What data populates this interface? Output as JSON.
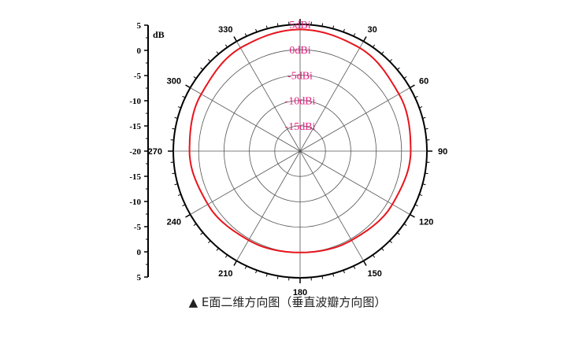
{
  "caption": "▲ E面二维方向图（垂直波瓣方向图）",
  "chart_data": {
    "type": "polar",
    "title": "",
    "radial_unit_label": "dB",
    "radial_scale_ticks": [
      "5",
      "0",
      "-5",
      "-10",
      "-15",
      "-20",
      "-15",
      "-10",
      "-5",
      "0",
      "5"
    ],
    "ring_values": [
      5,
      0,
      -5,
      -10,
      -15
    ],
    "ring_labels": [
      "5dBi",
      "0dBi",
      "-5dBi",
      "-10dBi",
      "-15dBi"
    ],
    "radial_range": [
      -20,
      5
    ],
    "angle_ticks": [
      0,
      30,
      60,
      90,
      120,
      150,
      180,
      210,
      240,
      270,
      300,
      330
    ],
    "angle_tick_labels": [
      "",
      "30",
      "60",
      "90",
      "120",
      "150",
      "180",
      "210",
      "240",
      "270",
      "300",
      "330"
    ],
    "angle_direction": "clockwise",
    "zero_location": "top",
    "grid": true,
    "series": [
      {
        "color": "#e8141c",
        "angles": [
          0,
          30,
          60,
          90,
          120,
          150,
          180,
          210,
          240,
          270,
          300,
          330,
          360
        ],
        "values": [
          4.0,
          3.5,
          2.5,
          1.8,
          1.0,
          0.3,
          0.0,
          0.3,
          1.0,
          1.8,
          2.5,
          3.5,
          4.0
        ]
      }
    ]
  }
}
